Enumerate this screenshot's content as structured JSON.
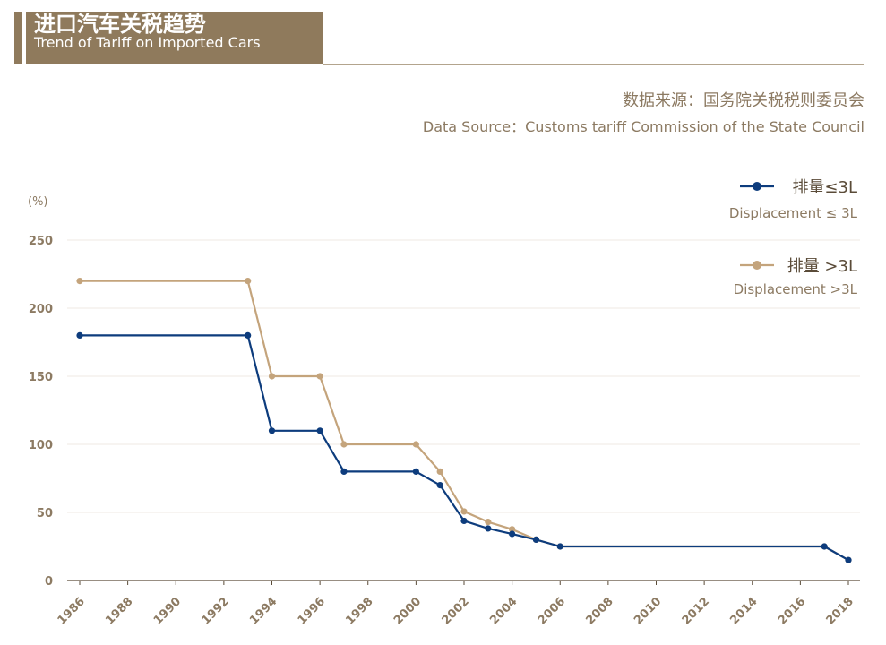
{
  "header": {
    "title_cn": "进口汽车关税趋势",
    "title_en": "Trend of Tariff on Imported Cars"
  },
  "source": {
    "cn": "数据来源：国务院关税税则委员会",
    "en": "Data Source：Customs tariff Commission of the State Council"
  },
  "colors": {
    "accent": "#8f7a5c",
    "series1": "#0d3c7d",
    "series2": "#c4a47c",
    "axis_text": "#8c7a62"
  },
  "chart_data": {
    "type": "line",
    "ylabel": "(%)",
    "xlabel": "",
    "ylim": [
      0,
      250
    ],
    "xlim": [
      1986,
      2018
    ],
    "yticks": [
      0,
      50,
      100,
      150,
      200,
      250
    ],
    "xticks": [
      1986,
      1988,
      1990,
      1992,
      1994,
      1996,
      1998,
      2000,
      2002,
      2004,
      2006,
      2008,
      2010,
      2012,
      2014,
      2016,
      2018
    ],
    "grid": true,
    "legend_position": "top-right",
    "series": [
      {
        "name": "排量≤3L",
        "name_en": "Displacement ≤ 3L",
        "color": "#0d3c7d",
        "points": [
          [
            1986,
            180
          ],
          [
            1993,
            180
          ],
          [
            1994,
            110
          ],
          [
            1996,
            110
          ],
          [
            1997,
            80
          ],
          [
            2000,
            80
          ],
          [
            2001,
            70
          ],
          [
            2002,
            43.8
          ],
          [
            2003,
            38.2
          ],
          [
            2004,
            34.2
          ],
          [
            2005,
            30
          ],
          [
            2006,
            25
          ],
          [
            2017,
            25
          ],
          [
            2018,
            15
          ]
        ]
      },
      {
        "name": "排量 >3L",
        "name_en": "Displacement >3L",
        "color": "#c4a47c",
        "points": [
          [
            1986,
            220
          ],
          [
            1993,
            220
          ],
          [
            1994,
            150
          ],
          [
            1996,
            150
          ],
          [
            1997,
            100
          ],
          [
            2000,
            100
          ],
          [
            2001,
            80
          ],
          [
            2002,
            50.7
          ],
          [
            2003,
            43
          ],
          [
            2004,
            37.6
          ],
          [
            2005,
            30
          ],
          [
            2006,
            25
          ],
          [
            2017,
            25
          ],
          [
            2018,
            15
          ]
        ]
      }
    ]
  }
}
